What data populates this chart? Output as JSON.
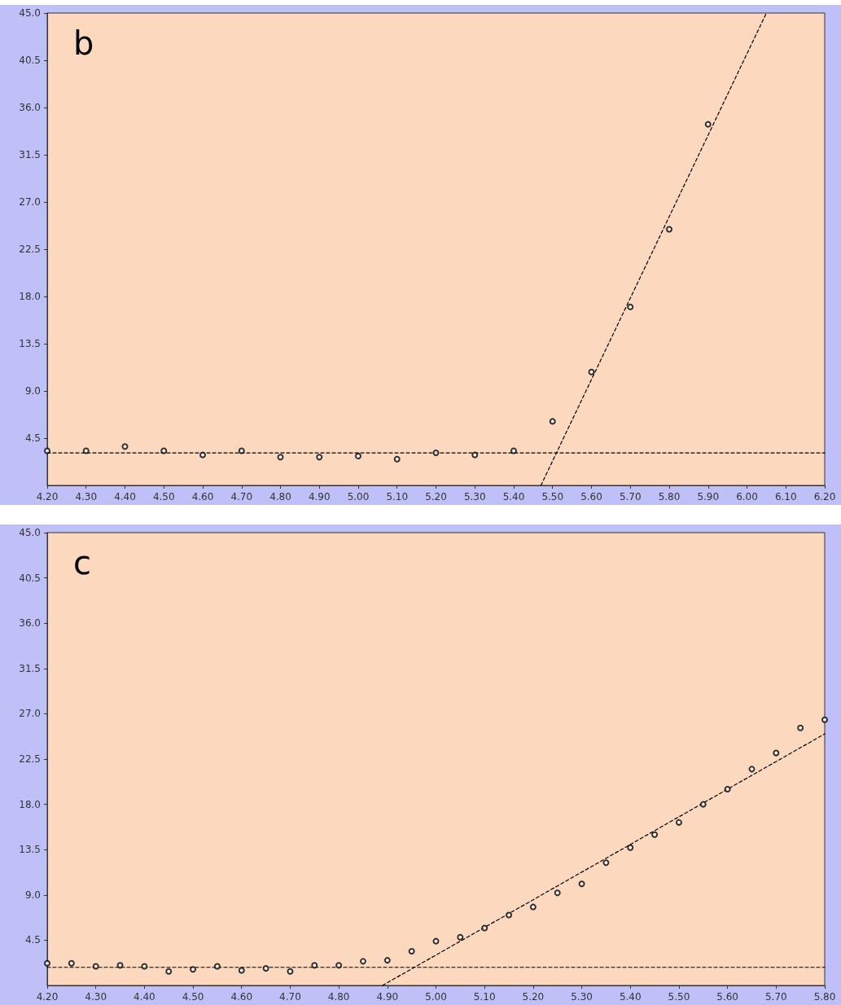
{
  "chart_data": [
    {
      "type": "scatter",
      "title": "b",
      "marker": "circle",
      "grid": false,
      "xlim": [
        4.2,
        6.2
      ],
      "ylim": [
        0,
        45
      ],
      "xticks": [
        {
          "value": 4.2,
          "label": "4.20"
        },
        {
          "value": 4.3,
          "label": "4.30"
        },
        {
          "value": 4.4,
          "label": "4.40"
        },
        {
          "value": 4.5,
          "label": "4.50"
        },
        {
          "value": 4.6,
          "label": "4.60"
        },
        {
          "value": 4.7,
          "label": "4.70"
        },
        {
          "value": 4.8,
          "label": "4.80"
        },
        {
          "value": 4.9,
          "label": "4.90"
        },
        {
          "value": 5.0,
          "label": "5.00"
        },
        {
          "value": 5.1,
          "label": "5.10"
        },
        {
          "value": 5.2,
          "label": "5.20"
        },
        {
          "value": 5.3,
          "label": "5.30"
        },
        {
          "value": 5.4,
          "label": "5.40"
        },
        {
          "value": 5.5,
          "label": "5.50"
        },
        {
          "value": 5.6,
          "label": "5.60"
        },
        {
          "value": 5.7,
          "label": "5.70"
        },
        {
          "value": 5.8,
          "label": "5.80"
        },
        {
          "value": 5.9,
          "label": "5.90"
        },
        {
          "value": 6.0,
          "label": "6.00"
        },
        {
          "value": 6.1,
          "label": "6.10"
        },
        {
          "value": 6.2,
          "label": "6.20"
        }
      ],
      "yticks": [
        4.5,
        {
          "value": 9,
          "label": "9.0"
        },
        13.5,
        {
          "value": 18,
          "label": "18.0"
        },
        22.5,
        {
          "value": 27,
          "label": "27.0"
        },
        31.5,
        {
          "value": 36,
          "label": "36.0"
        },
        40.5,
        {
          "value": 45,
          "label": "45.0"
        }
      ],
      "series": [
        {
          "color": "#000000",
          "x": [
            4.2,
            4.3,
            4.4,
            4.5,
            4.6,
            4.7,
            4.8,
            4.9,
            5.0,
            5.1,
            5.2,
            5.3,
            5.4,
            5.5,
            5.6,
            5.7,
            5.8,
            5.9
          ],
          "values": [
            3.3,
            3.3,
            3.7,
            3.3,
            2.9,
            3.3,
            2.7,
            2.7,
            2.8,
            2.5,
            3.1,
            2.9,
            3.3,
            6.1,
            10.8,
            17.0,
            24.4,
            34.4
          ]
        },
        {
          "type": "line",
          "color": "#000000",
          "line_style": "dashed",
          "marker": "none",
          "x": [
            4.2,
            6.2
          ],
          "values": [
            3.1,
            3.1
          ]
        },
        {
          "type": "line",
          "color": "#000000",
          "line_style": "dashed",
          "marker": "none",
          "x": [
            5.47,
            6.05
          ],
          "values": [
            0,
            45
          ]
        }
      ]
    },
    {
      "type": "scatter",
      "title": "c",
      "marker": "circle",
      "grid": false,
      "xlim": [
        4.2,
        5.8
      ],
      "ylim": [
        0,
        45
      ],
      "xticks": [
        {
          "value": 4.2,
          "label": "4.20"
        },
        {
          "value": 4.3,
          "label": "4.30"
        },
        {
          "value": 4.4,
          "label": "4.40"
        },
        {
          "value": 4.5,
          "label": "4.50"
        },
        {
          "value": 4.6,
          "label": "4.60"
        },
        {
          "value": 4.7,
          "label": "4.70"
        },
        {
          "value": 4.8,
          "label": "4.80"
        },
        {
          "value": 4.9,
          "label": "4.90"
        },
        {
          "value": 5.0,
          "label": "5.00"
        },
        {
          "value": 5.1,
          "label": "5.10"
        },
        {
          "value": 5.2,
          "label": "5.20"
        },
        {
          "value": 5.3,
          "label": "5.30"
        },
        {
          "value": 5.4,
          "label": "5.40"
        },
        {
          "value": 5.5,
          "label": "5.50"
        },
        {
          "value": 5.6,
          "label": "5.60"
        },
        {
          "value": 5.7,
          "label": "5.70"
        },
        {
          "value": 5.8,
          "label": "5.80"
        }
      ],
      "yticks": [
        4.5,
        {
          "value": 9,
          "label": "9.0"
        },
        13.5,
        {
          "value": 18,
          "label": "18.0"
        },
        22.5,
        {
          "value": 27,
          "label": "27.0"
        },
        31.5,
        {
          "value": 36,
          "label": "36.0"
        },
        40.5,
        {
          "value": 45,
          "label": "45.0"
        }
      ],
      "series": [
        {
          "color": "#000000",
          "x": [
            4.2,
            4.25,
            4.3,
            4.35,
            4.4,
            4.45,
            4.5,
            4.55,
            4.6,
            4.65,
            4.7,
            4.75,
            4.8,
            4.85,
            4.9,
            4.95,
            5.0,
            5.05,
            5.1,
            5.15,
            5.2,
            5.25,
            5.3,
            5.35,
            5.4,
            5.45,
            5.5,
            5.55,
            5.6,
            5.65,
            5.7,
            5.75,
            5.8
          ],
          "values": [
            2.2,
            2.2,
            1.9,
            2.0,
            1.9,
            1.4,
            1.6,
            1.9,
            1.5,
            1.7,
            1.4,
            2.0,
            2.0,
            2.4,
            2.5,
            3.4,
            4.4,
            4.8,
            5.7,
            7.0,
            7.8,
            9.2,
            10.1,
            12.2,
            13.7,
            15.0,
            16.2,
            18.0,
            19.5,
            21.5,
            23.1,
            25.6,
            26.4
          ]
        },
        {
          "type": "line",
          "color": "#000000",
          "line_style": "dashed",
          "marker": "none",
          "x": [
            4.2,
            5.8
          ],
          "values": [
            1.8,
            1.8
          ]
        },
        {
          "type": "line",
          "color": "#000000",
          "line_style": "dashed",
          "marker": "none",
          "x": [
            4.89,
            5.8
          ],
          "values": [
            0,
            25.0
          ]
        }
      ]
    }
  ]
}
